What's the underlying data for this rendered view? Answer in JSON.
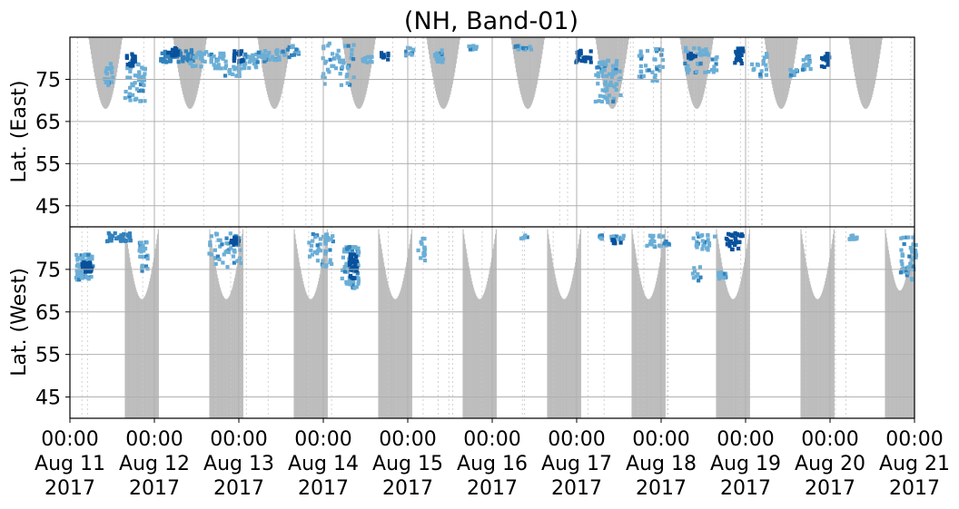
{
  "chart_data": {
    "type": "heatmap",
    "title": "(NH, Band-01)",
    "ylabel_top": "Lat. (East)",
    "ylabel_bottom": "Lat. (West)",
    "x_ticks": [
      {
        "day": 0,
        "time": "00:00",
        "date": "Aug 11",
        "year": "2017"
      },
      {
        "day": 1,
        "time": "00:00",
        "date": "Aug 12",
        "year": "2017"
      },
      {
        "day": 2,
        "time": "00:00",
        "date": "Aug 13",
        "year": "2017"
      },
      {
        "day": 3,
        "time": "00:00",
        "date": "Aug 14",
        "year": "2017"
      },
      {
        "day": 4,
        "time": "00:00",
        "date": "Aug 15",
        "year": "2017"
      },
      {
        "day": 5,
        "time": "00:00",
        "date": "Aug 16",
        "year": "2017"
      },
      {
        "day": 6,
        "time": "00:00",
        "date": "Aug 17",
        "year": "2017"
      },
      {
        "day": 7,
        "time": "00:00",
        "date": "Aug 18",
        "year": "2017"
      },
      {
        "day": 8,
        "time": "00:00",
        "date": "Aug 19",
        "year": "2017"
      },
      {
        "day": 9,
        "time": "00:00",
        "date": "Aug 20",
        "year": "2017"
      },
      {
        "day": 10,
        "time": "00:00",
        "date": "Aug 21",
        "year": "2017"
      }
    ],
    "y_ticks_top": [
      "45",
      "55",
      "65",
      "75"
    ],
    "y_ticks_bottom": [
      "75",
      "65",
      "55",
      "45"
    ],
    "y_tick_values": [
      45,
      55,
      65,
      75
    ],
    "x_range_days": [
      0,
      10
    ],
    "lat_range": [
      40,
      85
    ],
    "grid": true,
    "colors": {
      "daylight": "#bdbdbd",
      "echo_light": "#6baed6",
      "echo_mid": "#3182bd",
      "echo_dark": "#08519c",
      "grid": "#b0b0b0"
    },
    "daylight_top": [
      {
        "start": 0.22,
        "end": 0.62,
        "min_lat": 68
      },
      {
        "start": 1.22,
        "end": 1.62,
        "min_lat": 68
      },
      {
        "start": 2.22,
        "end": 2.62,
        "min_lat": 68
      },
      {
        "start": 3.22,
        "end": 3.62,
        "min_lat": 68
      },
      {
        "start": 4.22,
        "end": 4.62,
        "min_lat": 68
      },
      {
        "start": 5.22,
        "end": 5.62,
        "min_lat": 68
      },
      {
        "start": 6.22,
        "end": 6.62,
        "min_lat": 68
      },
      {
        "start": 7.22,
        "end": 7.62,
        "min_lat": 68
      },
      {
        "start": 8.22,
        "end": 8.62,
        "min_lat": 68
      },
      {
        "start": 9.22,
        "end": 9.62,
        "min_lat": 68
      }
    ],
    "daylight_bottom": [
      {
        "start": 0.65,
        "end": 1.05,
        "min_lat": 68
      },
      {
        "start": 1.65,
        "end": 2.05,
        "min_lat": 68
      },
      {
        "start": 2.65,
        "end": 3.05,
        "min_lat": 68
      },
      {
        "start": 3.65,
        "end": 4.05,
        "min_lat": 68
      },
      {
        "start": 4.65,
        "end": 5.05,
        "min_lat": 68
      },
      {
        "start": 5.65,
        "end": 6.05,
        "min_lat": 68
      },
      {
        "start": 6.65,
        "end": 7.05,
        "min_lat": 68
      },
      {
        "start": 7.65,
        "end": 8.05,
        "min_lat": 68
      },
      {
        "start": 8.65,
        "end": 9.05,
        "min_lat": 68
      },
      {
        "start": 9.65,
        "end": 10.0,
        "min_lat": 70
      }
    ],
    "echo_clusters": [
      {
        "hemi": "top",
        "day": 0.45,
        "lat": 77,
        "dday": 0.06,
        "dlat": 3,
        "n": 6,
        "level": 1
      },
      {
        "hemi": "top",
        "day": 0.75,
        "lat": 75,
        "dday": 0.12,
        "dlat": 5,
        "n": 16,
        "level": 1
      },
      {
        "hemi": "top",
        "day": 0.7,
        "lat": 80,
        "dday": 0.05,
        "dlat": 1.5,
        "n": 6,
        "level": 3
      },
      {
        "hemi": "top",
        "day": 1.25,
        "lat": 81,
        "dday": 0.2,
        "dlat": 1.5,
        "n": 18,
        "level": 2
      },
      {
        "hemi": "top",
        "day": 1.2,
        "lat": 82,
        "dday": 0.06,
        "dlat": 1,
        "n": 5,
        "level": 3
      },
      {
        "hemi": "top",
        "day": 1.6,
        "lat": 80,
        "dday": 0.2,
        "dlat": 2,
        "n": 14,
        "level": 1
      },
      {
        "hemi": "top",
        "day": 1.9,
        "lat": 78,
        "dday": 0.1,
        "dlat": 2,
        "n": 6,
        "level": 1
      },
      {
        "hemi": "top",
        "day": 2.1,
        "lat": 80,
        "dday": 0.1,
        "dlat": 2,
        "n": 8,
        "level": 1
      },
      {
        "hemi": "top",
        "day": 1.98,
        "lat": 81,
        "dday": 0.06,
        "dlat": 1.5,
        "n": 6,
        "level": 3
      },
      {
        "hemi": "top",
        "day": 2.35,
        "lat": 81,
        "dday": 0.15,
        "dlat": 1.5,
        "n": 10,
        "level": 1
      },
      {
        "hemi": "top",
        "day": 3.15,
        "lat": 79,
        "dday": 0.2,
        "dlat": 5,
        "n": 16,
        "level": 1
      },
      {
        "hemi": "top",
        "day": 2.6,
        "lat": 82,
        "dday": 0.1,
        "dlat": 1.5,
        "n": 6,
        "level": 1
      },
      {
        "hemi": "top",
        "day": 3.5,
        "lat": 80,
        "dday": 0.06,
        "dlat": 1,
        "n": 4,
        "level": 1
      },
      {
        "hemi": "top",
        "day": 3.7,
        "lat": 81,
        "dday": 0.05,
        "dlat": 1,
        "n": 3,
        "level": 3
      },
      {
        "hemi": "top",
        "day": 4.0,
        "lat": 82,
        "dday": 0.05,
        "dlat": 1,
        "n": 4,
        "level": 1
      },
      {
        "hemi": "top",
        "day": 4.35,
        "lat": 81,
        "dday": 0.05,
        "dlat": 1.5,
        "n": 6,
        "level": 1
      },
      {
        "hemi": "top",
        "day": 4.75,
        "lat": 83,
        "dday": 0.05,
        "dlat": 0.5,
        "n": 3,
        "level": 1
      },
      {
        "hemi": "top",
        "day": 5.35,
        "lat": 83,
        "dday": 0.1,
        "dlat": 0.5,
        "n": 5,
        "level": 1
      },
      {
        "hemi": "top",
        "day": 6.35,
        "lat": 75,
        "dday": 0.15,
        "dlat": 5,
        "n": 22,
        "level": 1
      },
      {
        "hemi": "top",
        "day": 6.05,
        "lat": 81,
        "dday": 0.1,
        "dlat": 1.5,
        "n": 8,
        "level": 3
      },
      {
        "hemi": "top",
        "day": 6.85,
        "lat": 79,
        "dday": 0.15,
        "dlat": 4,
        "n": 12,
        "level": 1
      },
      {
        "hemi": "top",
        "day": 7.45,
        "lat": 80,
        "dday": 0.2,
        "dlat": 3,
        "n": 14,
        "level": 1
      },
      {
        "hemi": "top",
        "day": 7.35,
        "lat": 81,
        "dday": 0.05,
        "dlat": 1,
        "n": 4,
        "level": 3
      },
      {
        "hemi": "top",
        "day": 7.9,
        "lat": 81,
        "dday": 0.05,
        "dlat": 2,
        "n": 8,
        "level": 3
      },
      {
        "hemi": "top",
        "day": 8.15,
        "lat": 79,
        "dday": 0.1,
        "dlat": 3,
        "n": 6,
        "level": 1
      },
      {
        "hemi": "top",
        "day": 8.7,
        "lat": 79,
        "dday": 0.05,
        "dlat": 2,
        "n": 5,
        "level": 1
      },
      {
        "hemi": "top",
        "day": 8.55,
        "lat": 77,
        "dday": 0.05,
        "dlat": 1,
        "n": 3,
        "level": 1
      },
      {
        "hemi": "top",
        "day": 8.93,
        "lat": 80,
        "dday": 0.05,
        "dlat": 2,
        "n": 6,
        "level": 3
      },
      {
        "hemi": "bottom",
        "day": 0.15,
        "lat": 76,
        "dday": 0.1,
        "dlat": 3,
        "n": 22,
        "level": 1
      },
      {
        "hemi": "bottom",
        "day": 0.18,
        "lat": 76,
        "dday": 0.06,
        "dlat": 1.2,
        "n": 10,
        "level": 3
      },
      {
        "hemi": "bottom",
        "day": 0.55,
        "lat": 83,
        "dday": 0.15,
        "dlat": 1,
        "n": 10,
        "level": 2
      },
      {
        "hemi": "bottom",
        "day": 0.85,
        "lat": 78,
        "dday": 0.05,
        "dlat": 4,
        "n": 8,
        "level": 1
      },
      {
        "hemi": "bottom",
        "day": 1.8,
        "lat": 80,
        "dday": 0.2,
        "dlat": 4,
        "n": 16,
        "level": 1
      },
      {
        "hemi": "bottom",
        "day": 1.93,
        "lat": 82,
        "dday": 0.05,
        "dlat": 1,
        "n": 5,
        "level": 3
      },
      {
        "hemi": "bottom",
        "day": 2.95,
        "lat": 80,
        "dday": 0.15,
        "dlat": 4,
        "n": 14,
        "level": 1
      },
      {
        "hemi": "bottom",
        "day": 3.3,
        "lat": 76,
        "dday": 0.1,
        "dlat": 5,
        "n": 22,
        "level": 1
      },
      {
        "hemi": "bottom",
        "day": 3.33,
        "lat": 76,
        "dday": 0.05,
        "dlat": 3,
        "n": 10,
        "level": 3
      },
      {
        "hemi": "bottom",
        "day": 4.15,
        "lat": 80,
        "dday": 0.05,
        "dlat": 3,
        "n": 5,
        "level": 1
      },
      {
        "hemi": "bottom",
        "day": 5.35,
        "lat": 83,
        "dday": 0.05,
        "dlat": 0.5,
        "n": 2,
        "level": 1
      },
      {
        "hemi": "bottom",
        "day": 6.4,
        "lat": 83,
        "dday": 0.15,
        "dlat": 0.5,
        "n": 6,
        "level": 1
      },
      {
        "hemi": "bottom",
        "day": 6.45,
        "lat": 82,
        "dday": 0.05,
        "dlat": 0.5,
        "n": 3,
        "level": 3
      },
      {
        "hemi": "bottom",
        "day": 6.95,
        "lat": 82,
        "dday": 0.15,
        "dlat": 1.5,
        "n": 8,
        "level": 1
      },
      {
        "hemi": "bottom",
        "day": 7.5,
        "lat": 82,
        "dday": 0.15,
        "dlat": 2,
        "n": 8,
        "level": 1
      },
      {
        "hemi": "bottom",
        "day": 7.4,
        "lat": 74,
        "dday": 0.05,
        "dlat": 2,
        "n": 3,
        "level": 1
      },
      {
        "hemi": "bottom",
        "day": 7.85,
        "lat": 82,
        "dday": 0.1,
        "dlat": 2,
        "n": 10,
        "level": 3
      },
      {
        "hemi": "bottom",
        "day": 7.7,
        "lat": 74,
        "dday": 0.05,
        "dlat": 1,
        "n": 4,
        "level": 1
      },
      {
        "hemi": "bottom",
        "day": 9.25,
        "lat": 83,
        "dday": 0.05,
        "dlat": 0.5,
        "n": 3,
        "level": 1
      },
      {
        "hemi": "bottom",
        "day": 9.9,
        "lat": 78,
        "dday": 0.1,
        "dlat": 5,
        "n": 14,
        "level": 1
      }
    ]
  }
}
